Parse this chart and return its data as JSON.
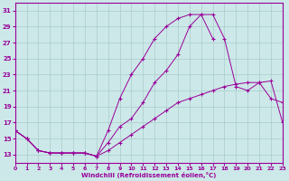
{
  "xlabel": "Windchill (Refroidissement éolien,°C)",
  "bg_color": "#cce8e8",
  "line_color": "#990099",
  "grid_color": "#aacccc",
  "xlim": [
    0,
    23
  ],
  "ylim": [
    12,
    32
  ],
  "xticks": [
    0,
    1,
    2,
    3,
    4,
    5,
    6,
    7,
    8,
    9,
    10,
    11,
    12,
    13,
    14,
    15,
    16,
    17,
    18,
    19,
    20,
    21,
    22,
    23
  ],
  "yticks": [
    13,
    15,
    17,
    19,
    21,
    23,
    25,
    27,
    29,
    31
  ],
  "curve1_x": [
    0,
    1,
    2,
    3,
    4,
    5,
    6,
    7,
    8,
    9,
    10,
    11,
    12,
    13,
    14,
    15,
    16,
    17,
    18,
    19,
    20,
    21,
    22,
    23
  ],
  "curve1_y": [
    16,
    15,
    13.5,
    13.2,
    13.2,
    13.2,
    13.2,
    12.8,
    13.5,
    14.5,
    15.5,
    16.5,
    17.5,
    18.5,
    19.5,
    20,
    20.5,
    21,
    21.5,
    21.8,
    22,
    22,
    22.2,
    17
  ],
  "curve2_x": [
    0,
    1,
    2,
    3,
    4,
    5,
    6,
    7,
    8,
    9,
    10,
    11,
    12,
    13,
    14,
    15,
    16,
    17
  ],
  "curve2_y": [
    16,
    15,
    13.5,
    13.2,
    13.2,
    13.2,
    13.2,
    12.8,
    16,
    20,
    23,
    25,
    27.5,
    29,
    30,
    30.5,
    30.5,
    27.5
  ],
  "curve3_x": [
    0,
    1,
    2,
    3,
    4,
    5,
    6,
    7,
    8,
    9,
    10,
    11,
    12,
    13,
    14,
    15,
    16,
    17,
    18,
    19,
    20,
    21,
    22,
    23
  ],
  "curve3_y": [
    16,
    15,
    13.5,
    13.2,
    13.2,
    13.2,
    13.2,
    12.8,
    14.5,
    16.5,
    17.5,
    19.5,
    22,
    23.5,
    25.5,
    29,
    30.5,
    30.5,
    27.5,
    21.5,
    21,
    22,
    20,
    19.5
  ]
}
